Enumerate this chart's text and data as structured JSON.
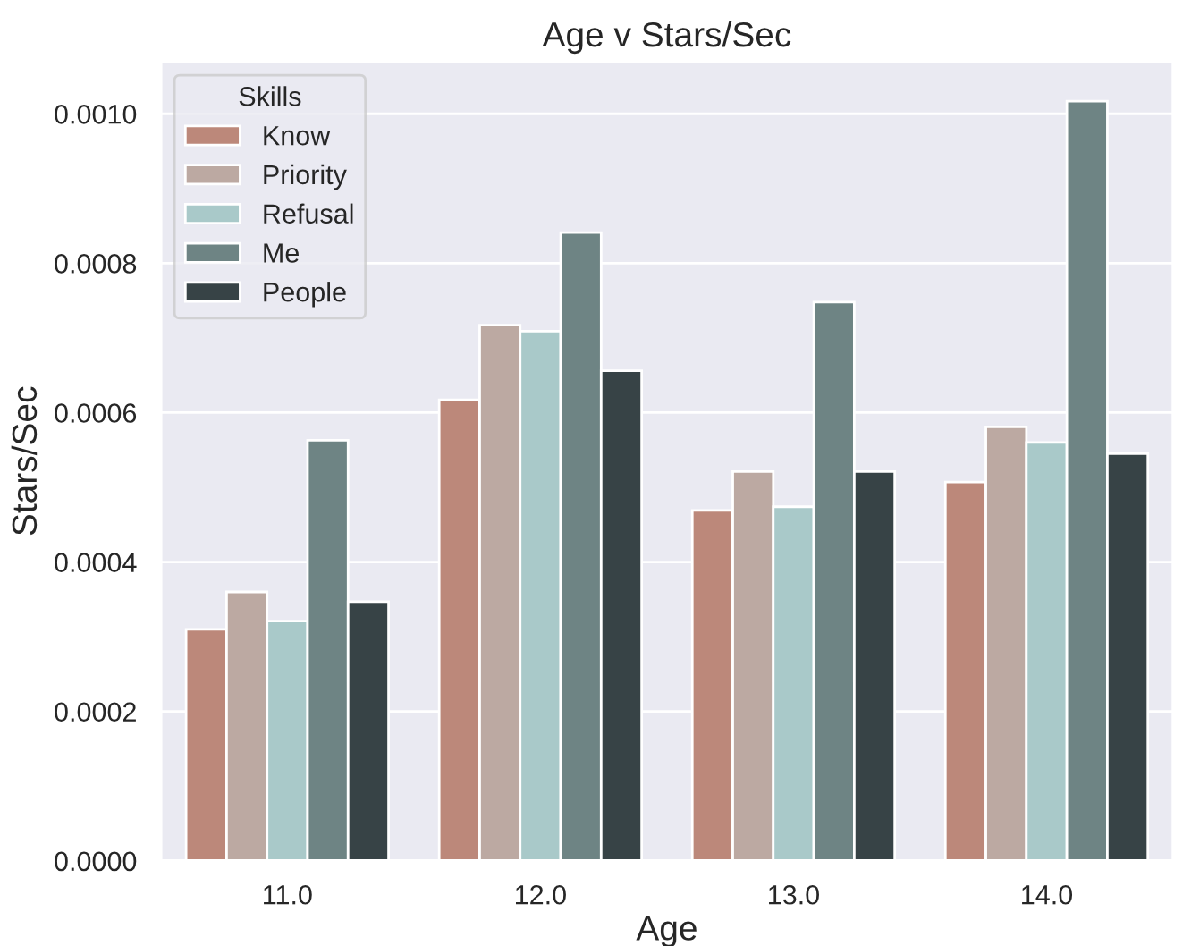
{
  "chart_data": {
    "type": "bar",
    "title": "Age v Stars/Sec",
    "xlabel": "Age",
    "ylabel": "Stars/Sec",
    "legend_title": "Skills",
    "categories": [
      "11.0",
      "12.0",
      "13.0",
      "14.0"
    ],
    "series": [
      {
        "name": "Know",
        "color": "#bc887a",
        "values": [
          0.00031,
          0.000617,
          0.000469,
          0.000507
        ]
      },
      {
        "name": "Priority",
        "color": "#bca9a2",
        "values": [
          0.00036,
          0.000717,
          0.000521,
          0.000581
        ]
      },
      {
        "name": "Refusal",
        "color": "#a9c9c9",
        "values": [
          0.000321,
          0.000709,
          0.000474,
          0.00056
        ]
      },
      {
        "name": "Me",
        "color": "#6e8484",
        "values": [
          0.000563,
          0.000841,
          0.000748,
          0.001017
        ]
      },
      {
        "name": "People",
        "color": "#374346",
        "values": [
          0.000347,
          0.000656,
          0.000521,
          0.000545
        ]
      }
    ],
    "ylim": [
      0,
      0.00107
    ],
    "yticks": [
      {
        "value": 0,
        "label": "0.0000"
      },
      {
        "value": 0.0002,
        "label": "0.0002"
      },
      {
        "value": 0.0004,
        "label": "0.0004"
      },
      {
        "value": 0.0006,
        "label": "0.0006"
      },
      {
        "value": 0.0008,
        "label": "0.0008"
      },
      {
        "value": 0.001,
        "label": "0.0010"
      }
    ],
    "grid": "y",
    "legend": "top left"
  }
}
